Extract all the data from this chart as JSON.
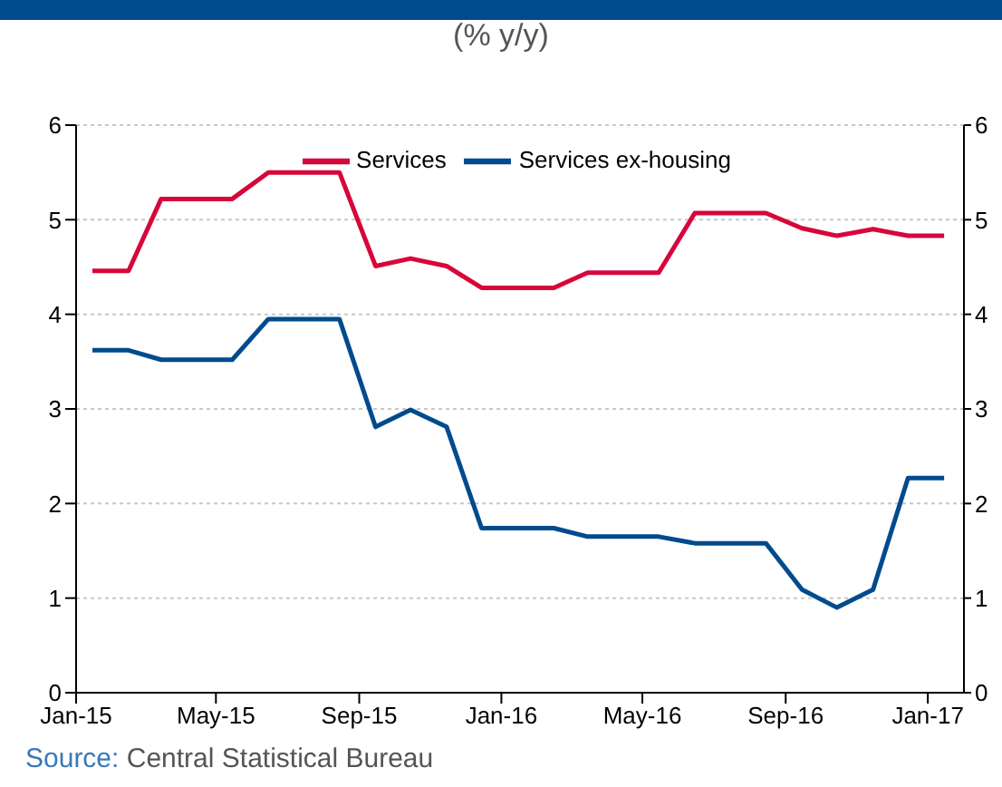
{
  "chart_data": {
    "type": "line",
    "title": "(% y/y)",
    "x": [
      "2015-01-15",
      "2015-02-15",
      "2015-03-15",
      "2015-04-15",
      "2015-05-15",
      "2015-06-15",
      "2015-07-15",
      "2015-08-15",
      "2015-09-15",
      "2015-10-15",
      "2015-11-15",
      "2015-12-15",
      "2016-01-15",
      "2016-02-15",
      "2016-03-15",
      "2016-04-15",
      "2016-05-15",
      "2016-06-15",
      "2016-07-15",
      "2016-08-15",
      "2016-09-15",
      "2016-10-15",
      "2016-11-15",
      "2016-12-15",
      "2017-01-15"
    ],
    "series": [
      {
        "name": "Services ex-housing",
        "color": "#004b8d",
        "values": [
          3.62,
          3.62,
          3.52,
          3.52,
          3.52,
          3.95,
          3.95,
          3.95,
          2.81,
          2.99,
          2.81,
          1.74,
          1.74,
          1.74,
          1.65,
          1.65,
          1.65,
          1.58,
          1.58,
          1.58,
          1.09,
          0.9,
          1.09,
          2.27,
          2.27
        ]
      },
      {
        "name": "Services",
        "color": "#d7063b",
        "values": [
          4.46,
          4.46,
          5.22,
          5.22,
          5.22,
          5.5,
          5.5,
          5.5,
          4.51,
          4.59,
          4.51,
          4.28,
          4.28,
          4.28,
          4.44,
          4.44,
          4.44,
          5.07,
          5.07,
          5.07,
          4.91,
          4.83,
          4.9,
          4.83,
          4.83
        ]
      }
    ],
    "xlim": [
      "2015-01-01",
      "2017-02-01"
    ],
    "xticks": [
      {
        "value": "2015-01-01",
        "label": "Jan-15"
      },
      {
        "value": "2015-05-01",
        "label": "May-15"
      },
      {
        "value": "2015-09-01",
        "label": "Sep-15"
      },
      {
        "value": "2016-01-01",
        "label": "Jan-16"
      },
      {
        "value": "2016-05-01",
        "label": "May-16"
      },
      {
        "value": "2016-09-01",
        "label": "Sep-16"
      },
      {
        "value": "2017-01-01",
        "label": "Jan-17"
      }
    ],
    "ylim": [
      0,
      6
    ],
    "yticks": [
      0,
      1,
      2,
      3,
      4,
      5,
      6
    ],
    "y2lim": [
      0,
      6
    ],
    "y2ticks": [
      0,
      1,
      2,
      3,
      4,
      5,
      6
    ],
    "grid": "y",
    "legend": "top",
    "marker": "none",
    "line_style": "solid",
    "annotations": [
      "Source: Central Statistical Bureau"
    ]
  }
}
